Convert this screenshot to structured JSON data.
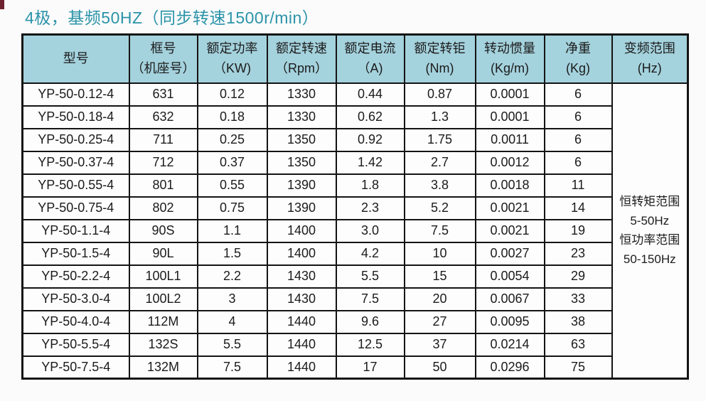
{
  "title": {
    "text": "4极，基频50HZ（同步转速1500r/min）",
    "color": "#2a93a8"
  },
  "colors": {
    "header_bg": "#a4d2dd",
    "border": "#141414",
    "page_bg": "#fbfbfb",
    "corner_mark": "#6e2230"
  },
  "table": {
    "columns": [
      {
        "key": "model",
        "line1": "型号",
        "line2": ""
      },
      {
        "key": "frame",
        "line1": "框号",
        "line2": "（机座号）"
      },
      {
        "key": "power",
        "line1": "额定功率",
        "line2": "（KW)"
      },
      {
        "key": "speed",
        "line1": "额定转速",
        "line2": "（Rpm）"
      },
      {
        "key": "current",
        "line1": "额定电流",
        "line2": "（A)"
      },
      {
        "key": "torque",
        "line1": "额定转钜",
        "line2": "(Nm)"
      },
      {
        "key": "inertia",
        "line1": "转动惯量",
        "line2": "(Kg/m)"
      },
      {
        "key": "weight",
        "line1": "净重",
        "line2": "(Kg)"
      },
      {
        "key": "freq-range",
        "line1": "变频范围",
        "line2": "(Hz)"
      }
    ],
    "rows": [
      [
        "YP-50-0.12-4",
        "631",
        "0.12",
        "1330",
        "0.44",
        "0.87",
        "0.0001",
        "6"
      ],
      [
        "YP-50-0.18-4",
        "632",
        "0.18",
        "1330",
        "0.62",
        "1.3",
        "0.0001",
        "6"
      ],
      [
        "YP-50-0.25-4",
        "711",
        "0.25",
        "1350",
        "0.92",
        "1.75",
        "0.0011",
        "6"
      ],
      [
        "YP-50-0.37-4",
        "712",
        "0.37",
        "1350",
        "1.42",
        "2.7",
        "0.0012",
        "6"
      ],
      [
        "YP-50-0.55-4",
        "801",
        "0.55",
        "1390",
        "1.8",
        "3.8",
        "0.0018",
        "11"
      ],
      [
        "YP-50-0.75-4",
        "802",
        "0.75",
        "1390",
        "2.3",
        "5.2",
        "0.0021",
        "14"
      ],
      [
        "YP-50-1.1-4",
        "90S",
        "1.1",
        "1400",
        "3.0",
        "7.5",
        "0.0021",
        "19"
      ],
      [
        "YP-50-1.5-4",
        "90L",
        "1.5",
        "1400",
        "4.2",
        "10",
        "0.0027",
        "23"
      ],
      [
        "YP-50-2.2-4",
        "100L1",
        "2.2",
        "1430",
        "5.5",
        "15",
        "0.0054",
        "29"
      ],
      [
        "YP-50-3.0-4",
        "100L2",
        "3",
        "1430",
        "7.5",
        "20",
        "0.0067",
        "33"
      ],
      [
        "YP-50-4.0-4",
        "112M",
        "4",
        "1440",
        "9.6",
        "27",
        "0.0095",
        "38"
      ],
      [
        "YP-50-5.5-4",
        "132S",
        "5.5",
        "1440",
        "12.5",
        "37",
        "0.0214",
        "63"
      ],
      [
        "YP-50-7.5-4",
        "132M",
        "7.5",
        "1440",
        "17",
        "50",
        "0.0296",
        "75"
      ]
    ],
    "freq_range_cell": {
      "lines": [
        "恒转矩范围",
        "5-50Hz",
        "恒功率范围",
        "50-150Hz"
      ]
    }
  }
}
